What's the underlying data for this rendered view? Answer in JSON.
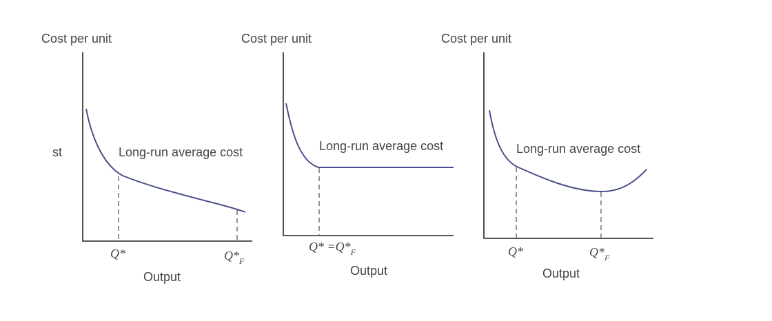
{
  "chart_data": [
    {
      "type": "line",
      "ylabel": "Cost per unit",
      "xlabel": "Output",
      "series": [
        {
          "name": "Long-run average cost",
          "shape": "continuously-declining"
        }
      ],
      "markers": [
        {
          "label": "Q*",
          "position": "kink"
        },
        {
          "label": "Q*",
          "subscript": "F",
          "position": "right-end"
        }
      ],
      "left_cut_text": "st"
    },
    {
      "type": "line",
      "ylabel": "Cost per unit",
      "xlabel": "Output",
      "series": [
        {
          "name": "Long-run average cost",
          "shape": "declining-then-flat"
        }
      ],
      "markers": [
        {
          "label": "Q* =Q*",
          "subscript": "F",
          "position": "flat-start"
        }
      ]
    },
    {
      "type": "line",
      "ylabel": "Cost per unit",
      "xlabel": "Output",
      "series": [
        {
          "name": "Long-run average cost",
          "shape": "u-shaped"
        }
      ],
      "markers": [
        {
          "label": "Q*",
          "position": "kink"
        },
        {
          "label": "Q*",
          "subscript": "F",
          "position": "minimum"
        }
      ]
    }
  ],
  "colors": {
    "curve": "#4a4f8c",
    "axis": "#222222",
    "text": "#444444"
  }
}
